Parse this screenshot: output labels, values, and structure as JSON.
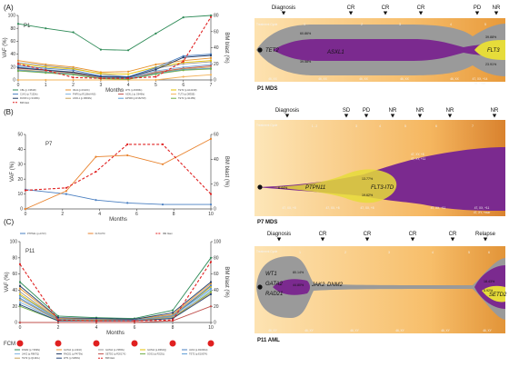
{
  "panels": [
    {
      "letter": "(A)",
      "patient": "P1",
      "fish_label": "P1 MDS",
      "timeline_label": "Treatment Cycle",
      "xlabel": "Months",
      "ylabel_left": "VAF (%)",
      "ylabel_right": "BM blast (%)",
      "events": [
        "Diagnosis",
        "CR",
        "CR",
        "CR",
        "PD",
        "NR"
      ],
      "cycles": [
        "1",
        "2",
        "3",
        "4",
        "5"
      ],
      "fish_genes": [
        "TET2",
        "ASXL1",
        "FLT3"
      ],
      "fish_pcts": [
        "60.86%",
        "39.58%",
        "39.88%",
        "23.91%"
      ],
      "karyotypes": [
        "46, XX",
        "46, XX",
        "46, XX",
        "46, XX",
        "46, XX",
        "47, XX, +14"
      ],
      "karyotype_extra": "58, +mar",
      "legend": [
        "CBL (p.C381R)",
        "IDH1 (p.R132C)",
        "WT1 (p.R369fs)",
        "TET2 (p.H1413R)",
        "CUX1 (p.T152fs)",
        "PHF6 (p.R116fs/ANS)",
        "ASXL1 (p.G646fs)",
        "TLT3 (p.D835E)",
        "RUNX1 (p.S318fs)",
        "ASXL1 (p.R693fs)",
        "EP300 (p.R1627W)",
        "TET2 (p.I1148S)",
        "BM blast"
      ]
    },
    {
      "letter": "(B)",
      "patient": "P7",
      "fish_label": "P7 MDS",
      "timeline_label": "Treatment Cycle",
      "xlabel": "Months",
      "ylabel_left": "VAF (%)",
      "ylabel_right": "BM blast (%)",
      "events": [
        "Diagnosis",
        "SD",
        "PD",
        "NR",
        "NR",
        "NR",
        "NR"
      ],
      "cycles": [
        "1 - 2",
        "3",
        "4",
        "5",
        "6",
        "7"
      ],
      "fish_genes": [
        "PTPN11",
        "FLT3-ITD"
      ],
      "fish_pcts": [
        "6.44%",
        "13.77%",
        "19.62%"
      ],
      "karyotypes": [
        "47, XX, +8",
        "47, XX, +8",
        "47, XX, +8",
        "47, XX, +11",
        "47, XX, +11"
      ],
      "karyotype_extra": "47, XY, +mar",
      "karyotype_top": "47, XY, +8",
      "karyotype_top2": "47, XY, +11",
      "legend": [
        "PTPN11 (p.A72V)",
        "FLT3-ITD",
        "BM blast"
      ]
    },
    {
      "letter": "(C)",
      "patient": "P11",
      "fish_label": "P11 AML",
      "timeline_label": "Treatment Cycle",
      "xlabel": "Months",
      "ylabel_left": "VAF (%)",
      "ylabel_right": "BM blast (%)",
      "fcm_label": "FCM",
      "events": [
        "Diagnosis",
        "CR",
        "CR",
        "CR",
        "CR",
        "Relapse"
      ],
      "cycles": [
        "1",
        "2",
        "3",
        "4",
        "5",
        "6"
      ],
      "fish_genes": [
        "WT1",
        "GATA2",
        "RAD21",
        "JAK2",
        "DNM2",
        "SETD2"
      ],
      "fish_pcts": [
        "80.14%",
        "44.80%",
        "18.43%",
        "5.92%"
      ],
      "karyotypes": [
        "46, XY",
        "46, XY",
        "46, XY",
        "46, XY",
        "46, XY",
        "46, XY"
      ],
      "legend": [
        "DNM2 (p.Y369fs)",
        "GATA2 (p.L321F)",
        "GATA2 (p.V365fs)",
        "GATA2 (p.R362Q)",
        "JAK2 (p.R1063H)",
        "JAK2 (p.R867Q)",
        "RAD21 (p.P473fs)",
        "SETD2 (p.R2017X)",
        "SOS1 (p.R225L)",
        "TET2 (p.E1007K)",
        "TET2 (p.Q1191L)",
        "WT1 (p.S381fs)",
        "BM blast"
      ]
    }
  ],
  "chart_data": [
    {
      "type": "line",
      "x": [
        0,
        1,
        2,
        3,
        4,
        5,
        6,
        7
      ],
      "xlabel": "Months",
      "ylabel": "VAF (%)",
      "ylim": [
        0,
        100
      ],
      "y2label": "BM blast (%)",
      "y2lim": [
        0,
        80
      ],
      "series": [
        {
          "name": "CBL (p.C381R)",
          "color": "#2e8b57",
          "values": [
            87,
            80,
            74,
            47,
            46,
            72,
            97,
            100
          ]
        },
        {
          "name": "IDH1 (p.R132C)",
          "color": "#e8922c",
          "values": [
            30,
            24,
            20,
            12,
            13,
            24,
            30,
            34
          ]
        },
        {
          "name": "WT1 (p.R369fs)",
          "color": "#9a9a9a",
          "values": [
            27,
            22,
            18,
            9,
            5,
            18,
            25,
            28
          ]
        },
        {
          "name": "TET2 (p.H1413R)",
          "color": "#e6c200",
          "values": [
            25,
            20,
            17,
            10,
            9,
            20,
            27,
            30
          ]
        },
        {
          "name": "CUX1 (p.T152fs)",
          "color": "#4a7fc1",
          "values": [
            22,
            18,
            15,
            6,
            5,
            19,
            37,
            40
          ]
        },
        {
          "name": "PHF6 (p.R116fs/ANS)",
          "color": "#7fb3e0",
          "values": [
            20,
            16,
            12,
            4,
            3,
            14,
            20,
            24
          ]
        },
        {
          "name": "ASXL1 (p.G646fs)",
          "color": "#c0504d",
          "values": [
            18,
            15,
            11,
            3,
            2,
            12,
            18,
            22
          ]
        },
        {
          "name": "TLT3 (p.D835E)",
          "color": "#f3b35a",
          "values": [
            0,
            0,
            0,
            0,
            0,
            0,
            5,
            8
          ]
        },
        {
          "name": "RUNX1 (p.S318fs)",
          "color": "#1f3864",
          "values": [
            19,
            15,
            12,
            5,
            4,
            16,
            35,
            38
          ]
        },
        {
          "name": "ASXL1 (p.R693fs)",
          "color": "#c5a15a",
          "values": [
            16,
            13,
            10,
            3,
            2,
            11,
            17,
            20
          ]
        },
        {
          "name": "EP300 (p.R1627W)",
          "color": "#5b9bd5",
          "values": [
            15,
            12,
            9,
            2,
            2,
            10,
            16,
            18
          ]
        },
        {
          "name": "TET2 (p.I1148S)",
          "color": "#70ad47",
          "values": [
            14,
            11,
            8,
            2,
            1,
            9,
            15,
            17
          ]
        },
        {
          "name": "BM blast",
          "color": "#e02020",
          "dashed": true,
          "axis": "right",
          "values": [
            20,
            12,
            3,
            2,
            2,
            4,
            23,
            78
          ]
        }
      ]
    },
    {
      "type": "line",
      "x": [
        0,
        2.2,
        3.8,
        5.5,
        7.4,
        10
      ],
      "xlabel": "Months",
      "ylabel": "VAF (%)",
      "ylim": [
        0,
        50
      ],
      "y2label": "BM blast (%)",
      "y2lim": [
        0,
        60
      ],
      "series": [
        {
          "name": "PTPN11 (p.A72V)",
          "color": "#4a7fc1",
          "values": [
            13,
            10,
            6,
            4,
            3,
            3
          ]
        },
        {
          "name": "FLT3-ITD",
          "color": "#e8822c",
          "values": [
            0,
            12,
            35,
            36,
            30,
            47
          ]
        },
        {
          "name": "BM blast",
          "color": "#e02020",
          "dashed": true,
          "axis": "right",
          "values": [
            15,
            17,
            30,
            52,
            52,
            12
          ]
        }
      ]
    },
    {
      "type": "line",
      "x": [
        0,
        2,
        4,
        6,
        8,
        10
      ],
      "xlabel": "Months",
      "ylabel": "VAF (%)",
      "ylim": [
        0,
        100
      ],
      "y2label": "BM blast (%)",
      "y2lim": [
        0,
        100
      ],
      "series": [
        {
          "name": "DNM2 (p.Y369fs)",
          "color": "#2e8b57",
          "values": [
            50,
            8,
            6,
            5,
            15,
            80
          ]
        },
        {
          "name": "GATA2 (p.L321F)",
          "color": "#e8922c",
          "values": [
            42,
            5,
            4,
            4,
            10,
            48
          ]
        },
        {
          "name": "GATA2 (p.V365fs)",
          "color": "#9a9a9a",
          "values": [
            38,
            4,
            4,
            3,
            9,
            45
          ]
        },
        {
          "name": "GATA2 (p.R362Q)",
          "color": "#e6c200",
          "values": [
            35,
            4,
            3,
            3,
            8,
            44
          ]
        },
        {
          "name": "JAK2 (p.R1063H)",
          "color": "#4a7fc1",
          "values": [
            30,
            3,
            3,
            2,
            7,
            46
          ]
        },
        {
          "name": "JAK2 (p.R867Q)",
          "color": "#7fb3e0",
          "values": [
            25,
            3,
            2,
            2,
            6,
            40
          ]
        },
        {
          "name": "RAD21 (p.P473fs)",
          "color": "#1f3864",
          "values": [
            45,
            6,
            5,
            4,
            12,
            50
          ]
        },
        {
          "name": "SETD2 (p.R2017X)",
          "color": "#c0504d",
          "values": [
            0,
            0,
            0,
            0,
            2,
            20
          ]
        },
        {
          "name": "SOS1 (p.R225L)",
          "color": "#70ad47",
          "values": [
            20,
            2,
            2,
            2,
            5,
            38
          ]
        },
        {
          "name": "TET2 (p.E1007K)",
          "color": "#5b9bd5",
          "values": [
            33,
            4,
            3,
            3,
            8,
            42
          ]
        },
        {
          "name": "TET2 (p.Q1191L)",
          "color": "#c5a15a",
          "values": [
            28,
            3,
            3,
            2,
            7,
            36
          ]
        },
        {
          "name": "WT1 (p.S381fs)",
          "color": "#264478",
          "values": [
            22,
            2,
            2,
            2,
            5,
            35
          ]
        },
        {
          "name": "BM blast",
          "color": "#e02020",
          "dashed": true,
          "axis": "right",
          "values": [
            72,
            3,
            2,
            2,
            3,
            75
          ]
        }
      ]
    }
  ]
}
